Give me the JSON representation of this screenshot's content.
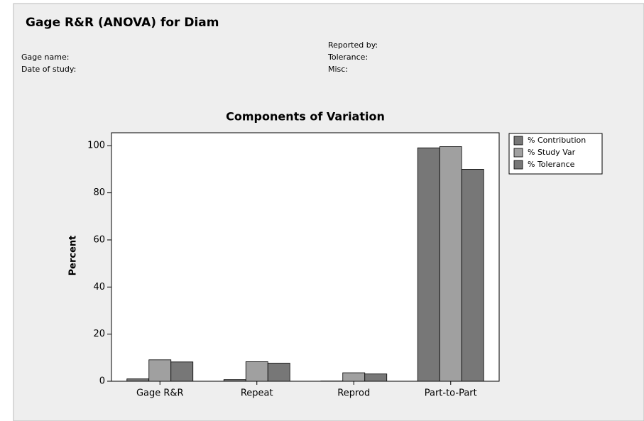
{
  "header": {
    "title": "Gage R&R (ANOVA) for Diam",
    "left_fields": [
      "Gage name:",
      "Date of study:"
    ],
    "right_fields": [
      "Reported by:",
      "Tolerance:",
      "Misc:"
    ]
  },
  "chart_data": {
    "type": "bar",
    "title": "Components of Variation",
    "y_label": "Percent",
    "categories": [
      "Gage R&R",
      "Repeat",
      "Reprod",
      "Part-to-Part"
    ],
    "series": [
      {
        "name": "% Contribution",
        "color": "#777777",
        "values": [
          1.0,
          0.7,
          0.1,
          99.1
        ]
      },
      {
        "name": "% Study Var",
        "color": "#a0a0a0",
        "values": [
          9.1,
          8.3,
          3.6,
          99.6
        ]
      },
      {
        "name": "% Tolerance",
        "color": "#777777",
        "values": [
          8.2,
          7.7,
          3.1,
          90.0
        ]
      }
    ],
    "ylim": [
      0,
      105.5
    ],
    "yticks": [
      0,
      20,
      40,
      60,
      80,
      100
    ],
    "legend": "right"
  }
}
